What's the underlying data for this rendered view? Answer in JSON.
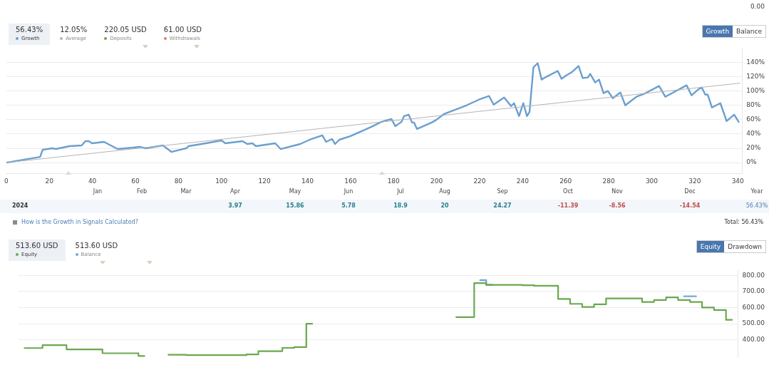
{
  "chart_data": [
    {
      "type": "line",
      "legend": "top left",
      "grid": "y",
      "marker": "none",
      "line_style": "solid",
      "xlim": [
        0,
        342
      ],
      "xticks": [
        0,
        20,
        40,
        60,
        80,
        100,
        120,
        140,
        160,
        180,
        200,
        220,
        240,
        260,
        280,
        300,
        320,
        340
      ],
      "ylim": [
        -15,
        160
      ],
      "yticks": [
        {
          "value": 0,
          "label": "0%"
        },
        {
          "value": 20,
          "label": "20%"
        },
        {
          "value": 40,
          "label": "40%"
        },
        {
          "value": 60,
          "label": "60%"
        },
        {
          "value": 80,
          "label": "80%"
        },
        {
          "value": 100,
          "label": "100%"
        },
        {
          "value": 120,
          "label": "120%"
        },
        {
          "value": 140,
          "label": "140%"
        }
      ],
      "series": [
        {
          "name": "Growth",
          "color": "#6b9fcf",
          "x": [
            0,
            15.7,
            16.9,
            21.4,
            23,
            29.4,
            35,
            36.8,
            38.3,
            39.9,
            45.4,
            51.7,
            59,
            61.9,
            64.8,
            72.8,
            76.7,
            83.6,
            84.7,
            92.7,
            100,
            101.8,
            109.8,
            112,
            114.4,
            116,
            125,
            127.5,
            136.6,
            141,
            146.9,
            148.6,
            151.4,
            152.8,
            154.8,
            160,
            169.7,
            174.4,
            179,
            180.8,
            183.7,
            184.9,
            187,
            188.6,
            189.5,
            190.9,
            197.7,
            200,
            203.5,
            213.9,
            219.7,
            224.4,
            226.5,
            231.4,
            234.6,
            236,
            238.3,
            240.3,
            242,
            243.2,
            245,
            247,
            248.8,
            251.1,
            256.3,
            258.1,
            260.4,
            262.7,
            266,
            267.9,
            270.3,
            271.4,
            273.7,
            275.5,
            277.6,
            279.6,
            281.9,
            285.4,
            287.7,
            292.9,
            296.4,
            303.4,
            306.3,
            316.2,
            318.5,
            322,
            323.2,
            324.9,
            326,
            328,
            331.9,
            334.8,
            338.3,
            340.4
          ],
          "values": [
            0,
            8,
            18,
            20,
            19,
            23,
            24,
            30,
            30,
            27,
            29,
            19,
            21,
            22,
            20,
            24,
            15,
            20,
            23,
            27,
            31,
            27,
            30,
            26,
            27,
            23,
            27,
            19,
            26,
            32,
            38,
            29,
            33,
            26,
            32,
            37,
            50,
            57,
            61,
            51,
            57,
            65,
            67,
            56,
            56,
            47,
            56,
            60,
            68,
            80,
            88,
            93,
            81,
            91,
            79,
            83,
            65,
            83,
            65,
            71,
            133,
            139,
            116,
            120,
            128,
            117,
            122,
            126,
            135,
            118,
            119,
            124,
            112,
            116,
            97,
            100,
            90,
            98,
            80,
            92,
            96,
            107,
            92,
            108,
            94,
            103,
            105,
            95,
            95,
            77,
            83,
            58,
            67,
            57
          ]
        },
        {
          "name": "Average",
          "color": "#b4b4b4",
          "x": [
            0,
            341
          ],
          "values": [
            0,
            111
          ]
        }
      ],
      "annotations": [
        "0.00",
        "56.43%",
        "12.05%",
        "220.05 USD",
        "Deposits",
        "61.00 USD",
        "Withdrawals",
        "Growth",
        "Balance"
      ]
    },
    {
      "type": "heatmap",
      "categories": [
        "Jan",
        "Feb",
        "Mar",
        "Apr",
        "May",
        "Jun",
        "Jul",
        "Aug",
        "Sep",
        "Oct",
        "Nov",
        "Dec",
        "Year"
      ],
      "y_categories": [
        "2024"
      ],
      "cells": [
        [
          null,
          null,
          null,
          3.97,
          15.86,
          5.78,
          18.9,
          20,
          24.27,
          -11.39,
          -8.56,
          -14.54,
          56.43
        ]
      ],
      "cell_labels": [
        [
          null,
          null,
          null,
          "3.97",
          "15.86",
          "5.78",
          "18.9",
          "20",
          "24.27",
          "-11.39",
          "-8.56",
          "-14.54",
          "56.43%"
        ]
      ],
      "annotations": [
        "How is the Growth in Signals Calculated?",
        "Total: 56.43%"
      ]
    },
    {
      "type": "step",
      "legend": "top left",
      "grid": "y",
      "marker": "none",
      "line_style": "solid",
      "tick_labels": "y",
      "categories": [
        null,
        null,
        null,
        null,
        null,
        null,
        null,
        null,
        null,
        null,
        null,
        null,
        null,
        null,
        null,
        null,
        null,
        null,
        null,
        null,
        null,
        null,
        null,
        null,
        null,
        null,
        null,
        null,
        null,
        null,
        null,
        null,
        null,
        null,
        null,
        null,
        null,
        null,
        null,
        null,
        null,
        null,
        null,
        null,
        null,
        null,
        null,
        null,
        null,
        null,
        null,
        null,
        null,
        null,
        null,
        null,
        null,
        null,
        null,
        null
      ],
      "ylim": [
        290,
        830
      ],
      "yticks": [
        {
          "value": 400,
          "label": "400.00"
        },
        {
          "value": 500,
          "label": "500.00"
        },
        {
          "value": 600,
          "label": "600.00"
        },
        {
          "value": 700,
          "label": "700.00"
        },
        {
          "value": 800,
          "label": "800.00"
        }
      ],
      "series": [
        {
          "name": "Balance",
          "color": "#7aa7d6",
          "values": [
            null,
            null,
            null,
            null,
            null,
            null,
            null,
            null,
            null,
            null,
            null,
            null,
            null,
            null,
            null,
            null,
            null,
            null,
            null,
            null,
            null,
            null,
            null,
            null,
            null,
            null,
            null,
            null,
            null,
            null,
            null,
            null,
            null,
            null,
            null,
            null,
            null,
            null,
            770,
            741,
            null,
            null,
            null,
            null,
            null,
            null,
            null,
            null,
            null,
            null,
            null,
            null,
            null,
            null,
            null,
            670,
            670,
            null,
            null,
            null
          ]
        },
        {
          "name": "Equity",
          "color": "#6aa84f",
          "values": [
            349,
            349,
            367,
            367,
            341,
            341,
            341,
            317,
            317,
            317,
            300,
            null,
            308,
            308,
            305,
            305,
            305,
            305,
            305,
            310,
            330,
            330,
            350,
            355,
            500,
            null,
            null,
            null,
            null,
            null,
            null,
            null,
            null,
            null,
            null,
            null,
            541,
            541,
            752,
            741,
            741,
            741,
            738,
            735,
            735,
            653,
            623,
            604,
            620,
            657,
            657,
            657,
            635,
            647,
            663,
            647,
            635,
            600,
            585,
            524
          ]
        }
      ],
      "annotations": [
        "513.60 USD",
        "513.60 USD",
        "Equity",
        "Drawdown"
      ]
    }
  ]
}
